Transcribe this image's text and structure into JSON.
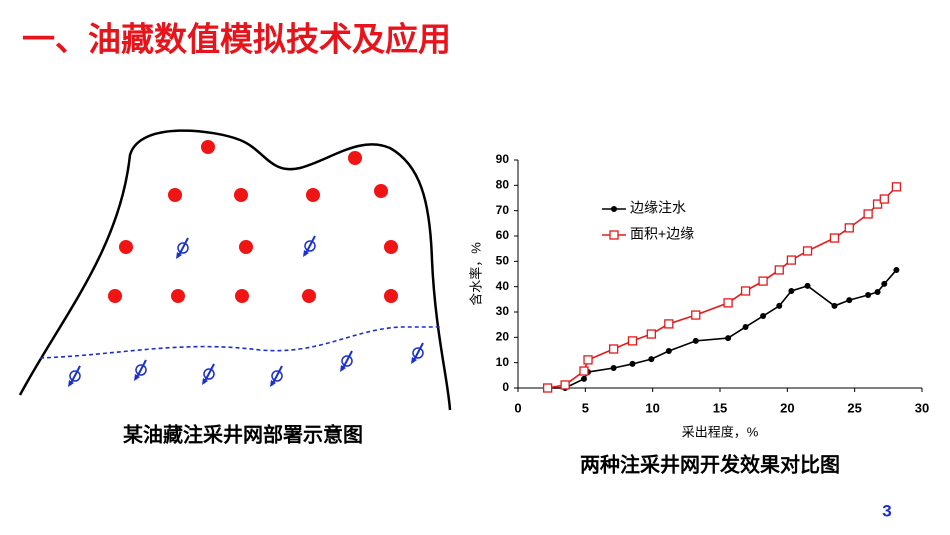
{
  "title": "一、油藏数值模拟技术及应用",
  "diagram": {
    "caption": "某油藏注采井网部署示意图"
  },
  "page_number": "3",
  "chart_data": {
    "type": "line",
    "caption": "两种注采井网开发效果对比图",
    "x_label": "采出程度，%",
    "y_label": "含水率，%",
    "x": [
      2.2,
      3.5,
      4.9,
      5.2,
      7.1,
      8.5,
      9.9,
      11.2,
      13.2,
      15.6,
      16.9,
      18.2,
      19.4,
      20.3,
      21.5,
      23.5,
      24.6,
      26.0,
      26.7,
      27.2,
      28.1
    ],
    "series": [
      {
        "name": "边缘注水",
        "color": "#000000",
        "marker": "filled-circle",
        "values": [
          0,
          0,
          3.6,
          6.3,
          7.9,
          9.5,
          11.4,
          14.6,
          18.6,
          19.7,
          24.1,
          28.4,
          32.4,
          38.3,
          40.3,
          32.4,
          34.7,
          36.7,
          37.9,
          41.1,
          46.6
        ]
      },
      {
        "name": "面积+边缘",
        "color": "#e31a1c",
        "marker": "open-square",
        "values": [
          0,
          1.2,
          6.7,
          11.1,
          15.4,
          18.6,
          21.3,
          25.3,
          28.8,
          33.6,
          38.3,
          42.2,
          46.6,
          50.5,
          54.1,
          59.2,
          63.2,
          68.7,
          72.6,
          74.6,
          79.4
        ]
      }
    ],
    "xlim": [
      0,
      30
    ],
    "xticks": [
      0,
      5,
      10,
      15,
      20,
      25,
      30
    ],
    "ylim": [
      0,
      90
    ],
    "yticks": [
      0,
      10,
      20,
      30,
      40,
      50,
      60,
      70,
      80,
      90
    ],
    "legend": "upper-left"
  }
}
